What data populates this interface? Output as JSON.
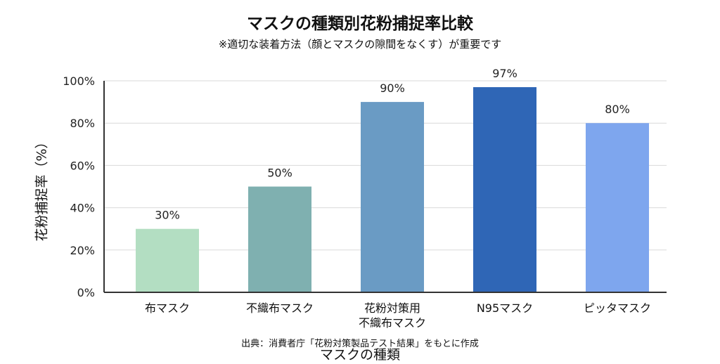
{
  "chart_data": {
    "type": "bar",
    "title": "マスクの種類別花粉捕捉率比較",
    "subtitle": "※適切な装着方法（顔とマスクの隙間をなくす）が重要です",
    "xlabel": "マスクの種類",
    "ylabel": "花粉捕捉率（%）",
    "source": "出典：消費者庁「花粉対策製品テスト結果」をもとに作成",
    "categories": [
      "布マスク",
      "不織布マスク",
      "花粉対策用\n不織布マスク",
      "N95マスク",
      "ピッタマスク"
    ],
    "values": [
      30,
      50,
      90,
      97,
      80
    ],
    "data_labels": [
      "30%",
      "50%",
      "90%",
      "97%",
      "80%"
    ],
    "yticks": [
      "0%",
      "20%",
      "40%",
      "60%",
      "80%",
      "100%"
    ],
    "ylim": [
      0,
      100
    ],
    "grid": true,
    "colors": [
      "#b3dec2",
      "#7fb0b0",
      "#6a9bc4",
      "#2f66b6",
      "#7ea6ee"
    ]
  }
}
